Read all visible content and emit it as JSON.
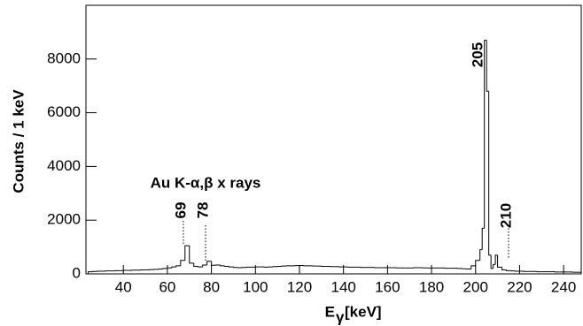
{
  "chart_data": {
    "type": "histogram",
    "y_label": "Counts / 1 keV",
    "x_label_symbol": "E",
    "x_label_subscript": "γ",
    "x_label_unit": "[keV]",
    "annotation": "Au K-α,β x rays",
    "peak_labels": [
      "69",
      "78",
      "205",
      "210"
    ],
    "color": "#000000",
    "xlim": [
      23,
      248
    ],
    "xticks": [
      40,
      60,
      80,
      100,
      120,
      140,
      160,
      180,
      200,
      220,
      240
    ],
    "ylim": [
      0,
      10000
    ],
    "yticks": [
      0,
      2000,
      4000,
      6000,
      8000
    ],
    "bins": [
      24,
      26,
      28,
      30,
      32,
      34,
      36,
      38,
      40,
      42,
      44,
      46,
      48,
      50,
      52,
      54,
      56,
      58,
      60,
      62,
      64,
      66,
      68,
      70,
      72,
      74,
      76,
      78,
      80,
      82,
      84,
      86,
      88,
      90,
      92,
      94,
      96,
      98,
      100,
      102,
      104,
      106,
      108,
      110,
      112,
      114,
      116,
      118,
      120,
      122,
      124,
      126,
      128,
      130,
      132,
      134,
      136,
      138,
      140,
      142,
      144,
      146,
      148,
      150,
      152,
      154,
      156,
      158,
      160,
      162,
      164,
      166,
      168,
      170,
      172,
      174,
      176,
      178,
      180,
      182,
      184,
      186,
      188,
      190,
      192,
      194,
      196,
      198,
      200,
      202,
      203,
      204,
      205,
      206,
      207,
      208,
      209,
      210,
      212,
      214,
      216,
      218,
      220,
      222,
      224,
      226,
      228,
      230,
      232,
      234,
      236,
      238,
      240,
      242,
      244,
      246,
      248
    ],
    "values": [
      80,
      90,
      100,
      100,
      110,
      110,
      120,
      120,
      130,
      130,
      140,
      140,
      150,
      150,
      160,
      170,
      180,
      200,
      220,
      260,
      300,
      500,
      1050,
      400,
      280,
      260,
      330,
      470,
      320,
      330,
      300,
      280,
      260,
      240,
      230,
      240,
      250,
      250,
      260,
      260,
      250,
      260,
      270,
      280,
      290,
      300,
      300,
      310,
      310,
      300,
      300,
      290,
      290,
      280,
      280,
      270,
      270,
      260,
      260,
      250,
      250,
      250,
      240,
      240,
      240,
      230,
      230,
      230,
      230,
      230,
      220,
      220,
      220,
      220,
      230,
      230,
      220,
      220,
      220,
      220,
      220,
      210,
      210,
      210,
      200,
      190,
      180,
      300,
      500,
      900,
      1700,
      8700,
      6800,
      700,
      200,
      350,
      700,
      250,
      150,
      120,
      110,
      100,
      100,
      90,
      90,
      90,
      80,
      80,
      80,
      80,
      70,
      70,
      70,
      70,
      60,
      60
    ]
  }
}
